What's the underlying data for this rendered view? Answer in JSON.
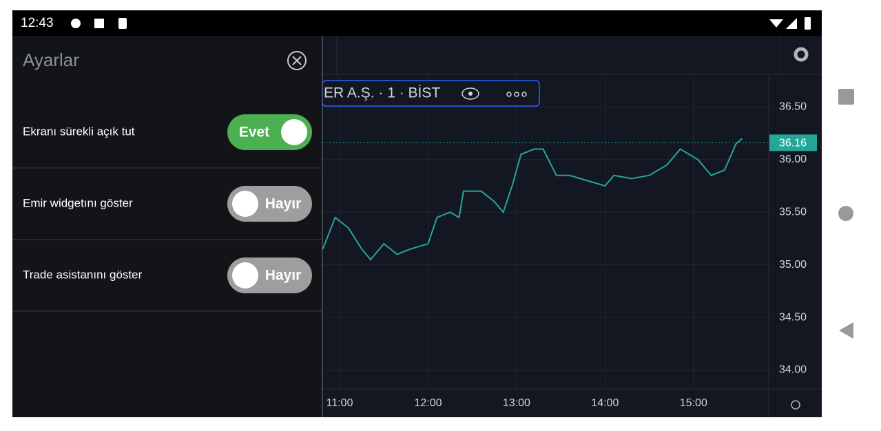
{
  "status_bar": {
    "time": "12:43"
  },
  "settings": {
    "title": "Ayarlar",
    "rows": [
      {
        "label": "Ekranı sürekli açık tut",
        "toggle": "Evet",
        "on": true
      },
      {
        "label": "Emir widgetını göster",
        "toggle": "Hayır",
        "on": false
      },
      {
        "label": "Trade asistanını göster",
        "toggle": "Hayır",
        "on": false
      }
    ]
  },
  "chart": {
    "type": "line",
    "symbol": "ER A.Ş. · 1 · BİST",
    "color": "#26a69a",
    "last_price": 36.16,
    "grid": true,
    "x": [
      10.81,
      10.95,
      11.1,
      11.25,
      11.35,
      11.5,
      11.65,
      11.8,
      12.0,
      12.1,
      12.25,
      12.35,
      12.4,
      12.6,
      12.75,
      12.85,
      12.95,
      13.05,
      13.2,
      13.3,
      13.45,
      13.6,
      13.8,
      14.0,
      14.1,
      14.3,
      14.5,
      14.7,
      14.85,
      15.05,
      15.2,
      15.35,
      15.48,
      15.55
    ],
    "values": [
      35.15,
      35.45,
      35.35,
      35.15,
      35.05,
      35.2,
      35.1,
      35.15,
      35.2,
      35.45,
      35.5,
      35.45,
      35.7,
      35.7,
      35.6,
      35.5,
      35.75,
      36.05,
      36.1,
      36.1,
      35.85,
      35.85,
      35.8,
      35.75,
      35.85,
      35.82,
      35.85,
      35.95,
      36.1,
      36.0,
      35.85,
      35.9,
      36.15,
      36.2
    ],
    "xlim": [
      10.805,
      15.85
    ],
    "xticks": [
      {
        "value": 11,
        "label": "11:00"
      },
      {
        "value": 12,
        "label": "12:00"
      },
      {
        "value": 13,
        "label": "13:00"
      },
      {
        "value": 14,
        "label": "14:00"
      },
      {
        "value": 15,
        "label": "15:00"
      }
    ],
    "ylim": [
      33.82,
      36.81
    ],
    "yticks": [
      {
        "value": 34,
        "label": "34.00"
      },
      {
        "value": 34.5,
        "label": "34.50"
      },
      {
        "value": 35,
        "label": "35.00"
      },
      {
        "value": 35.5,
        "label": "35.50"
      },
      {
        "value": 36,
        "label": "36.00"
      },
      {
        "value": 36.5,
        "label": "36.50"
      }
    ]
  }
}
